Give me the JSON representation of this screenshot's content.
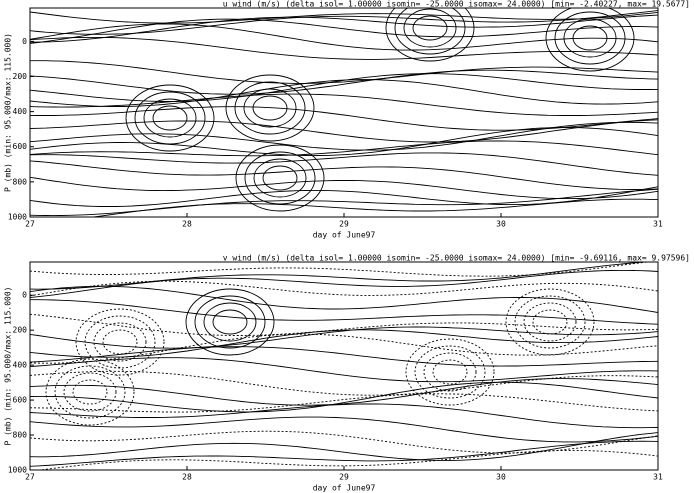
{
  "chart_data": [
    {
      "type": "contour",
      "title": "u wind (m/s)  (delta isol= 1.00000  isomin= -25.0000  isomax= 24.0000) [min= -2.40227, max= 19.5677]",
      "xlabel": "day of June97",
      "ylabel": "P (mb)  (min: 95.000/max: 115.000)",
      "xlim": [
        27,
        31
      ],
      "xticks": [
        27,
        28,
        29,
        30,
        31
      ],
      "ylim": [
        1000,
        -190
      ],
      "yticks": [
        0,
        200,
        400,
        600,
        800,
        1000
      ]
    },
    {
      "type": "contour",
      "title": "v wind (m/s)  (delta isol= 1.00000  isomin= -25.0000  isomax= 24.0000) [min= -9.69116, max= 9.97596]",
      "xlabel": "day of June97",
      "ylabel": "P (mb)  (min: 95.000/max: 115.000)",
      "xlim": [
        27,
        31
      ],
      "xticks": [
        27,
        28,
        29,
        30,
        31
      ],
      "ylim": [
        1000,
        -190
      ],
      "yticks": [
        0,
        200,
        400,
        600,
        800,
        1000
      ]
    }
  ]
}
